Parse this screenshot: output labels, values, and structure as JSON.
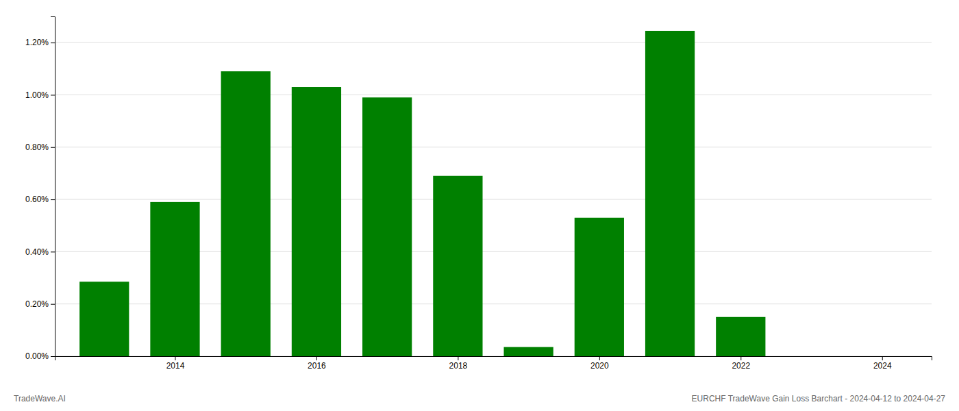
{
  "chart_data": {
    "type": "bar",
    "title": "EURCHF TradeWave Gain Loss Barchart - 2024-04-12 to 2024-04-27",
    "annotations": [
      "TradeWave.AI"
    ],
    "x": [
      2013,
      2014,
      2015,
      2016,
      2017,
      2018,
      2019,
      2020,
      2021,
      2022,
      2023
    ],
    "values": [
      0.00285,
      0.0059,
      0.0109,
      0.0103,
      0.0099,
      0.0069,
      0.00035,
      0.0053,
      0.01245,
      0.0015,
      0
    ],
    "color": "#008000",
    "xlim": [
      2012.3,
      2024.7
    ],
    "xticks": [
      2014,
      2016,
      2018,
      2020,
      2022,
      2024
    ],
    "ylim": [
      0,
      0.013
    ],
    "yticks": [
      {
        "value": 0,
        "label": "0.00%"
      },
      {
        "value": 0.002,
        "label": "0.20%"
      },
      {
        "value": 0.004,
        "label": "0.40%"
      },
      {
        "value": 0.006,
        "label": "0.60%"
      },
      {
        "value": 0.008,
        "label": "0.80%"
      },
      {
        "value": 0.01,
        "label": "1.00%"
      },
      {
        "value": 0.012,
        "label": "1.20%"
      }
    ],
    "grid": true
  }
}
